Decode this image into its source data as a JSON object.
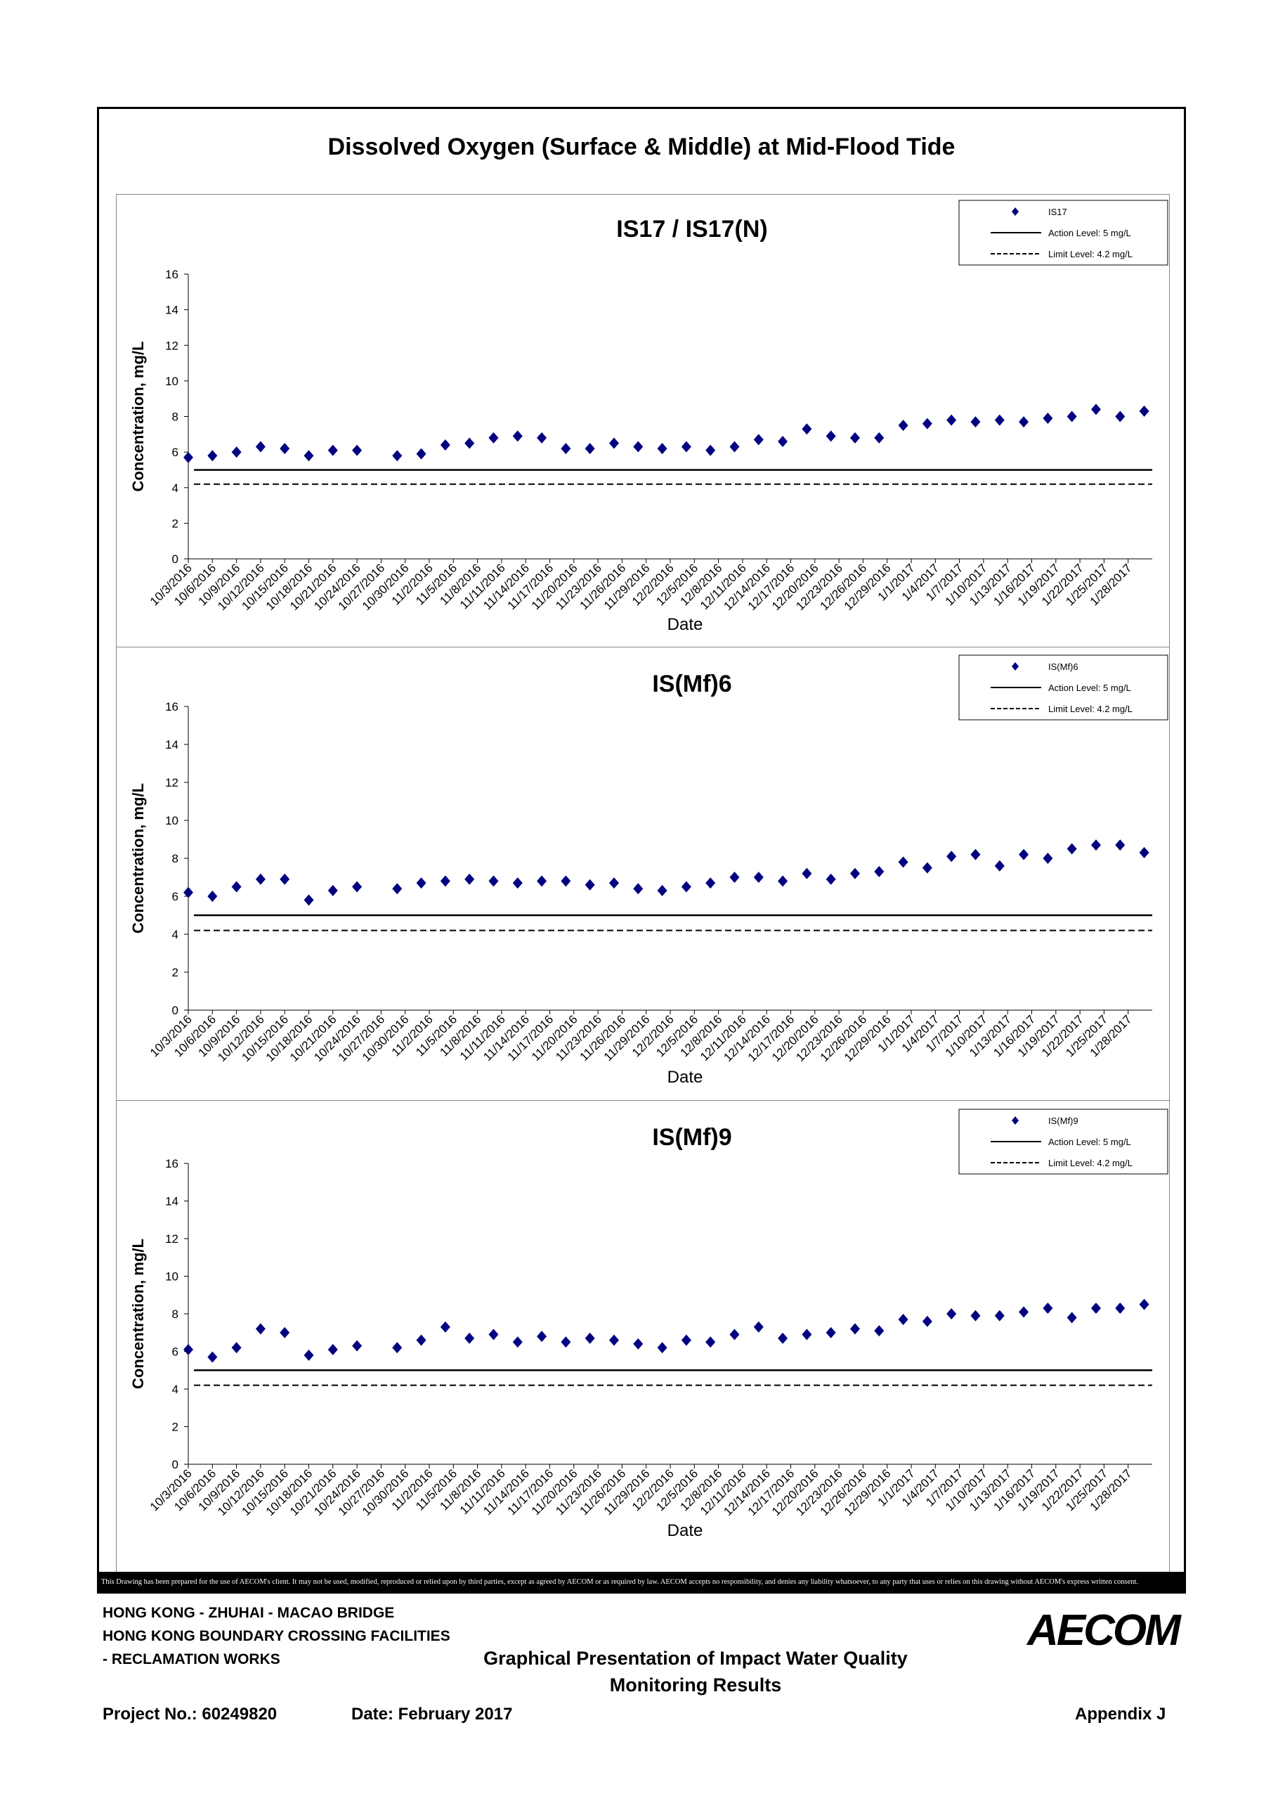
{
  "page_title": "Dissolved Oxygen (Surface & Middle) at Mid-Flood Tide",
  "x_tick_labels": [
    "10/3/2016",
    "10/6/2016",
    "10/9/2016",
    "10/12/2016",
    "10/15/2016",
    "10/18/2016",
    "10/21/2016",
    "10/24/2016",
    "10/27/2016",
    "10/30/2016",
    "11/2/2016",
    "11/5/2016",
    "11/8/2016",
    "11/11/2016",
    "11/14/2016",
    "11/17/2016",
    "11/20/2016",
    "11/23/2016",
    "11/26/2016",
    "11/29/2016",
    "12/2/2016",
    "12/5/2016",
    "12/8/2016",
    "12/11/2016",
    "12/14/2016",
    "12/17/2016",
    "12/20/2016",
    "12/23/2016",
    "12/26/2016",
    "12/29/2016",
    "1/1/2017",
    "1/4/2017",
    "1/7/2017",
    "1/10/2017",
    "1/13/2017",
    "1/16/2017",
    "1/19/2017",
    "1/22/2017",
    "1/25/2017",
    "1/28/2017"
  ],
  "chart_data": [
    {
      "type": "scatter",
      "title": "IS17 / IS17(N)",
      "xlabel": "Date",
      "ylabel": "Concentration, mg/L",
      "ylim": [
        0,
        16
      ],
      "yticks": [
        0,
        2,
        4,
        6,
        8,
        10,
        12,
        14,
        16
      ],
      "xlim": [
        "10/3/2016",
        "1/31/2017"
      ],
      "legend_position": "top-right",
      "series": [
        {
          "name": "IS17",
          "marker": "diamond",
          "color": "#000080",
          "points": [
            [
              "10/3/2016",
              5.7
            ],
            [
              "10/6/2016",
              5.8
            ],
            [
              "10/9/2016",
              6.0
            ],
            [
              "10/12/2016",
              6.3
            ],
            [
              "10/15/2016",
              6.2
            ],
            [
              "10/18/2016",
              5.8
            ],
            [
              "10/21/2016",
              6.1
            ],
            [
              "10/24/2016",
              6.1
            ],
            [
              "10/29/2016",
              5.8
            ],
            [
              "11/1/2016",
              5.9
            ],
            [
              "11/4/2016",
              6.4
            ],
            [
              "11/7/2016",
              6.5
            ],
            [
              "11/10/2016",
              6.8
            ],
            [
              "11/13/2016",
              6.9
            ],
            [
              "11/16/2016",
              6.8
            ],
            [
              "11/19/2016",
              6.2
            ],
            [
              "11/22/2016",
              6.2
            ],
            [
              "11/25/2016",
              6.5
            ],
            [
              "11/28/2016",
              6.3
            ],
            [
              "12/1/2016",
              6.2
            ],
            [
              "12/4/2016",
              6.3
            ],
            [
              "12/7/2016",
              6.1
            ],
            [
              "12/10/2016",
              6.3
            ],
            [
              "12/13/2016",
              6.7
            ],
            [
              "12/16/2016",
              6.6
            ],
            [
              "12/19/2016",
              7.3
            ],
            [
              "12/22/2016",
              6.9
            ],
            [
              "12/25/2016",
              6.8
            ],
            [
              "12/28/2016",
              6.8
            ],
            [
              "12/31/2016",
              7.5
            ],
            [
              "1/3/2017",
              7.6
            ],
            [
              "1/6/2017",
              7.8
            ],
            [
              "1/9/2017",
              7.7
            ],
            [
              "1/12/2017",
              7.8
            ],
            [
              "1/15/2017",
              7.7
            ],
            [
              "1/18/2017",
              7.9
            ],
            [
              "1/21/2017",
              8.0
            ],
            [
              "1/24/2017",
              8.4
            ],
            [
              "1/27/2017",
              8.0
            ],
            [
              "1/30/2017",
              8.3
            ]
          ]
        }
      ],
      "reference_lines": [
        {
          "name": "Action Level: 5 mg/L",
          "value": 5,
          "style": "solid"
        },
        {
          "name": "Limit Level: 4.2 mg/L",
          "value": 4.2,
          "style": "dashed"
        }
      ]
    },
    {
      "type": "scatter",
      "title": "IS(Mf)6",
      "xlabel": "Date",
      "ylabel": "Concentration, mg/L",
      "ylim": [
        0,
        16
      ],
      "yticks": [
        0,
        2,
        4,
        6,
        8,
        10,
        12,
        14,
        16
      ],
      "xlim": [
        "10/3/2016",
        "1/31/2017"
      ],
      "legend_position": "top-right",
      "series": [
        {
          "name": "IS(Mf)6",
          "marker": "diamond",
          "color": "#000080",
          "points": [
            [
              "10/3/2016",
              6.2
            ],
            [
              "10/6/2016",
              6.0
            ],
            [
              "10/9/2016",
              6.5
            ],
            [
              "10/12/2016",
              6.9
            ],
            [
              "10/15/2016",
              6.9
            ],
            [
              "10/18/2016",
              5.8
            ],
            [
              "10/21/2016",
              6.3
            ],
            [
              "10/24/2016",
              6.5
            ],
            [
              "10/29/2016",
              6.4
            ],
            [
              "11/1/2016",
              6.7
            ],
            [
              "11/4/2016",
              6.8
            ],
            [
              "11/7/2016",
              6.9
            ],
            [
              "11/10/2016",
              6.8
            ],
            [
              "11/13/2016",
              6.7
            ],
            [
              "11/16/2016",
              6.8
            ],
            [
              "11/19/2016",
              6.8
            ],
            [
              "11/22/2016",
              6.6
            ],
            [
              "11/25/2016",
              6.7
            ],
            [
              "11/28/2016",
              6.4
            ],
            [
              "12/1/2016",
              6.3
            ],
            [
              "12/4/2016",
              6.5
            ],
            [
              "12/7/2016",
              6.7
            ],
            [
              "12/10/2016",
              7.0
            ],
            [
              "12/13/2016",
              7.0
            ],
            [
              "12/16/2016",
              6.8
            ],
            [
              "12/19/2016",
              7.2
            ],
            [
              "12/22/2016",
              6.9
            ],
            [
              "12/25/2016",
              7.2
            ],
            [
              "12/28/2016",
              7.3
            ],
            [
              "12/31/2016",
              7.8
            ],
            [
              "1/3/2017",
              7.5
            ],
            [
              "1/6/2017",
              8.1
            ],
            [
              "1/9/2017",
              8.2
            ],
            [
              "1/12/2017",
              7.6
            ],
            [
              "1/15/2017",
              8.2
            ],
            [
              "1/18/2017",
              8.0
            ],
            [
              "1/21/2017",
              8.5
            ],
            [
              "1/24/2017",
              8.7
            ],
            [
              "1/27/2017",
              8.7
            ],
            [
              "1/30/2017",
              8.3
            ]
          ]
        }
      ],
      "reference_lines": [
        {
          "name": "Action Level: 5 mg/L",
          "value": 5,
          "style": "solid"
        },
        {
          "name": "Limit Level: 4.2 mg/L",
          "value": 4.2,
          "style": "dashed"
        }
      ]
    },
    {
      "type": "scatter",
      "title": "IS(Mf)9",
      "xlabel": "Date",
      "ylabel": "Concentration, mg/L",
      "ylim": [
        0,
        16
      ],
      "yticks": [
        0,
        2,
        4,
        6,
        8,
        10,
        12,
        14,
        16
      ],
      "xlim": [
        "10/3/2016",
        "1/31/2017"
      ],
      "legend_position": "top-right",
      "series": [
        {
          "name": "IS(Mf)9",
          "marker": "diamond",
          "color": "#000080",
          "points": [
            [
              "10/3/2016",
              6.1
            ],
            [
              "10/6/2016",
              5.7
            ],
            [
              "10/9/2016",
              6.2
            ],
            [
              "10/12/2016",
              7.2
            ],
            [
              "10/15/2016",
              7.0
            ],
            [
              "10/18/2016",
              5.8
            ],
            [
              "10/21/2016",
              6.1
            ],
            [
              "10/24/2016",
              6.3
            ],
            [
              "10/29/2016",
              6.2
            ],
            [
              "11/1/2016",
              6.6
            ],
            [
              "11/4/2016",
              7.3
            ],
            [
              "11/7/2016",
              6.7
            ],
            [
              "11/10/2016",
              6.9
            ],
            [
              "11/13/2016",
              6.5
            ],
            [
              "11/16/2016",
              6.8
            ],
            [
              "11/19/2016",
              6.5
            ],
            [
              "11/22/2016",
              6.7
            ],
            [
              "11/25/2016",
              6.6
            ],
            [
              "11/28/2016",
              6.4
            ],
            [
              "12/1/2016",
              6.2
            ],
            [
              "12/4/2016",
              6.6
            ],
            [
              "12/7/2016",
              6.5
            ],
            [
              "12/10/2016",
              6.9
            ],
            [
              "12/13/2016",
              7.3
            ],
            [
              "12/16/2016",
              6.7
            ],
            [
              "12/19/2016",
              6.9
            ],
            [
              "12/22/2016",
              7.0
            ],
            [
              "12/25/2016",
              7.2
            ],
            [
              "12/28/2016",
              7.1
            ],
            [
              "12/31/2016",
              7.7
            ],
            [
              "1/3/2017",
              7.6
            ],
            [
              "1/6/2017",
              8.0
            ],
            [
              "1/9/2017",
              7.9
            ],
            [
              "1/12/2017",
              7.9
            ],
            [
              "1/15/2017",
              8.1
            ],
            [
              "1/18/2017",
              8.3
            ],
            [
              "1/21/2017",
              7.8
            ],
            [
              "1/24/2017",
              8.3
            ],
            [
              "1/27/2017",
              8.3
            ],
            [
              "1/30/2017",
              8.5
            ]
          ]
        }
      ],
      "reference_lines": [
        {
          "name": "Action Level: 5 mg/L",
          "value": 5,
          "style": "solid"
        },
        {
          "name": "Limit Level: 4.2 mg/L",
          "value": 4.2,
          "style": "dashed"
        }
      ]
    }
  ],
  "disclaimer": "This Drawing has been prepared for the use of AECOM's client. It may not be used, modified, reproduced or relied upon by third parties, except as agreed by AECOM or as required by law. AECOM accepts no responsibility, and denies any liability whatsoever, to any party that uses or relies on this drawing without AECOM's express written consent.",
  "footer": {
    "project_line1": "HONG KONG - ZHUHAI - MACAO BRIDGE",
    "project_line2": "HONG KONG BOUNDARY CROSSING FACILITIES",
    "project_line3": "- RECLAMATION WORKS",
    "subtitle_line1": "Graphical Presentation of Impact Water Quality",
    "subtitle_line2": "Monitoring Results",
    "project_no": "Project No.: 60249820",
    "date": "Date: February 2017",
    "appendix": "Appendix J",
    "logo": "AECOM"
  }
}
